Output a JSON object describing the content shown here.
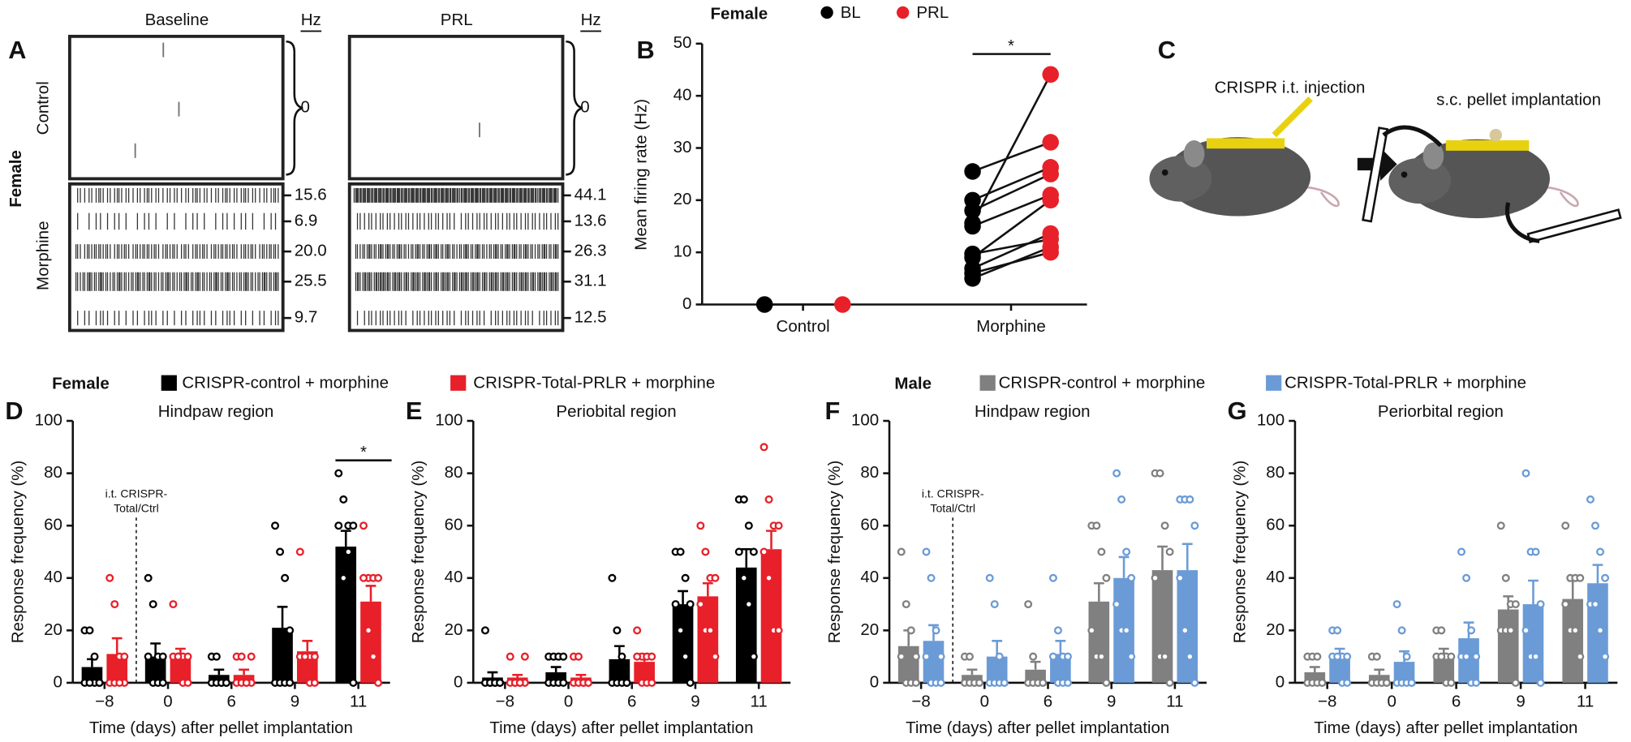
{
  "chart_data": [
    {
      "type": "raster",
      "panel": "A",
      "group_label": "Female",
      "rows": [
        "Control",
        "Morphine"
      ],
      "columns": [
        {
          "title": "Baseline",
          "unit": "Hz",
          "control": 0,
          "values": [
            15.6,
            6.9,
            20,
            25.5,
            9.7
          ],
          "value_labels": [
            "15.6",
            "6.9",
            "20.0",
            "25.5",
            "9.7"
          ]
        },
        {
          "title": "PRL",
          "unit": "Hz",
          "control": 0,
          "values": [
            44.1,
            13.6,
            26.3,
            31.1,
            12.5
          ],
          "value_labels": [
            "44.1",
            "13.6",
            "26.3",
            "31.1",
            "12.5"
          ]
        }
      ]
    },
    {
      "type": "paired",
      "panel": "B",
      "group_label": "Female",
      "ylabel": "Mean firing rate (Hz)",
      "categories": [
        "Control",
        "Morphine"
      ],
      "ylim": [
        0,
        50
      ],
      "yticks": [
        0,
        10,
        20,
        30,
        40,
        50
      ],
      "significance": "*",
      "series": [
        {
          "name": "BL",
          "color": "#000000",
          "values": [
            [
              0
            ],
            [
              25.5,
              20,
              18,
              15.6,
              15,
              9.7,
              9,
              6.9,
              6,
              5
            ]
          ]
        },
        {
          "name": "PRL",
          "color": "#e8202a",
          "values": [
            [
              0
            ],
            [
              31.1,
              26.3,
              25,
              44.1,
              21,
              12.5,
              20,
              13.6,
              10,
              11
            ]
          ]
        }
      ]
    },
    {
      "type": "bar_scatter",
      "panel": "D",
      "title": "Hindpaw region",
      "xlabel": "Time (days) after pellet implantation",
      "ylabel": "Response frequency (%)",
      "categories": [
        "−8",
        "0",
        "6",
        "9",
        "11"
      ],
      "ylim": [
        0,
        100
      ],
      "yticks": [
        0,
        20,
        40,
        60,
        80,
        100
      ],
      "annotation": [
        "i.t. CRISPR-",
        "Total/Ctrl"
      ],
      "significance": "*",
      "series": [
        {
          "color": "#000000",
          "values": [
            6,
            10,
            3,
            21,
            52
          ],
          "errors": [
            3,
            5,
            2,
            8,
            6
          ],
          "points": [
            [
              20,
              20,
              0,
              0,
              0,
              0,
              10,
              0
            ],
            [
              40,
              30,
              10,
              10,
              10,
              0,
              0,
              0
            ],
            [
              10,
              10,
              0,
              0,
              0,
              0,
              0,
              0
            ],
            [
              60,
              50,
              40,
              20,
              0,
              0,
              0,
              0
            ],
            [
              80,
              70,
              60,
              60,
              60,
              40,
              50,
              0
            ]
          ]
        },
        {
          "color": "#e8202a",
          "values": [
            11,
            10,
            3,
            12,
            31
          ],
          "errors": [
            6,
            3,
            2,
            4,
            6
          ],
          "points": [
            [
              40,
              30,
              10,
              0,
              0,
              0,
              0,
              10
            ],
            [
              30,
              10,
              10,
              10,
              10,
              10,
              0,
              0
            ],
            [
              10,
              10,
              0,
              0,
              0,
              0,
              0,
              10
            ],
            [
              50,
              10,
              10,
              10,
              10,
              10,
              0,
              0
            ],
            [
              60,
              40,
              40,
              40,
              40,
              20,
              10,
              0
            ]
          ]
        }
      ]
    },
    {
      "type": "bar_scatter",
      "panel": "E",
      "title": "Periobital region",
      "xlabel": "Time (days) after pellet implantation",
      "ylabel": "Response frequency (%)",
      "categories": [
        "−8",
        "0",
        "6",
        "9",
        "11"
      ],
      "ylim": [
        0,
        100
      ],
      "yticks": [
        0,
        20,
        40,
        60,
        80,
        100
      ],
      "series": [
        {
          "color": "#000000",
          "values": [
            2,
            4,
            9,
            30,
            44
          ],
          "errors": [
            2,
            2,
            5,
            5,
            7
          ],
          "points": [
            [
              20,
              0,
              0,
              0,
              0,
              0,
              0,
              0
            ],
            [
              10,
              10,
              10,
              10,
              0,
              0,
              0,
              0
            ],
            [
              40,
              20,
              10,
              0,
              0,
              0,
              0,
              0
            ],
            [
              50,
              50,
              40,
              30,
              30,
              20,
              10,
              0
            ],
            [
              70,
              70,
              60,
              50,
              50,
              40,
              30,
              10
            ]
          ]
        },
        {
          "color": "#e8202a",
          "values": [
            2,
            2,
            8,
            33,
            51
          ],
          "errors": [
            1,
            1,
            3,
            5,
            7
          ],
          "points": [
            [
              10,
              0,
              0,
              0,
              0,
              0,
              0,
              10
            ],
            [
              10,
              10,
              0,
              0,
              0,
              0,
              0,
              0
            ],
            [
              20,
              10,
              10,
              10,
              10,
              0,
              0,
              0
            ],
            [
              60,
              50,
              40,
              40,
              30,
              20,
              20,
              10
            ],
            [
              90,
              70,
              60,
              60,
              50,
              40,
              20,
              20
            ]
          ]
        }
      ]
    },
    {
      "type": "bar_scatter",
      "panel": "F",
      "title": "Hindpaw region",
      "xlabel": "Time (days) after pellet implantation",
      "ylabel": "Response frequency (%)",
      "categories": [
        "−8",
        "0",
        "6",
        "9",
        "11"
      ],
      "ylim": [
        0,
        100
      ],
      "yticks": [
        0,
        20,
        40,
        60,
        80,
        100
      ],
      "annotation": [
        "i.t. CRISPR-",
        "Total/Ctrl"
      ],
      "series": [
        {
          "color": "#808080",
          "values": [
            14,
            3,
            5,
            31,
            43
          ],
          "errors": [
            6,
            2,
            3,
            7,
            9
          ],
          "points": [
            [
              50,
              30,
              20,
              10,
              10,
              0,
              0,
              0
            ],
            [
              10,
              10,
              0,
              0,
              0,
              0,
              0,
              0
            ],
            [
              30,
              10,
              0,
              0,
              0,
              0,
              0,
              0
            ],
            [
              60,
              60,
              50,
              40,
              20,
              10,
              10,
              0
            ],
            [
              80,
              80,
              60,
              50,
              40,
              10,
              10,
              0
            ]
          ]
        },
        {
          "color": "#6b9bd6",
          "values": [
            16,
            10,
            11,
            40,
            43
          ],
          "errors": [
            6,
            6,
            5,
            8,
            10
          ],
          "points": [
            [
              50,
              40,
              20,
              10,
              10,
              0,
              0,
              0
            ],
            [
              40,
              30,
              10,
              0,
              0,
              0,
              0,
              0
            ],
            [
              40,
              20,
              10,
              10,
              10,
              0,
              0,
              0
            ],
            [
              80,
              70,
              50,
              40,
              30,
              20,
              20,
              10
            ],
            [
              70,
              70,
              70,
              60,
              40,
              20,
              10,
              0
            ]
          ]
        }
      ]
    },
    {
      "type": "bar_scatter",
      "panel": "G",
      "title": "Periorbital region",
      "xlabel": "Time (days) after pellet implantation",
      "ylabel": "Response frequency (%)",
      "categories": [
        "−8",
        "0",
        "6",
        "9",
        "11"
      ],
      "ylim": [
        0,
        100
      ],
      "yticks": [
        0,
        20,
        40,
        60,
        80,
        100
      ],
      "series": [
        {
          "color": "#808080",
          "values": [
            4,
            3,
            11,
            28,
            32
          ],
          "errors": [
            2,
            2,
            2,
            5,
            7
          ],
          "points": [
            [
              10,
              10,
              10,
              0,
              0,
              0,
              0,
              0
            ],
            [
              10,
              10,
              0,
              0,
              0,
              0,
              0,
              0
            ],
            [
              20,
              20,
              10,
              10,
              10,
              10,
              0,
              0
            ],
            [
              60,
              40,
              30,
              30,
              20,
              20,
              20,
              0
            ],
            [
              60,
              40,
              40,
              40,
              30,
              20,
              20,
              10
            ]
          ]
        },
        {
          "color": "#6b9bd6",
          "values": [
            11,
            8,
            17,
            30,
            38
          ],
          "errors": [
            2,
            4,
            6,
            9,
            7
          ],
          "points": [
            [
              20,
              20,
              10,
              10,
              10,
              10,
              0,
              0
            ],
            [
              30,
              20,
              10,
              0,
              0,
              0,
              0,
              0
            ],
            [
              50,
              40,
              20,
              10,
              10,
              10,
              0,
              0
            ],
            [
              80,
              50,
              50,
              30,
              20,
              10,
              10,
              0
            ],
            [
              70,
              60,
              50,
              40,
              30,
              30,
              20,
              10
            ]
          ]
        }
      ]
    }
  ],
  "diagram": {
    "panel": "C",
    "steps": [
      "CRISPR i.t. injection",
      "s.c. pellet implantation"
    ]
  },
  "legends": [
    {
      "label": "Female",
      "entries": [
        {
          "name": "CRISPR-control + morphine",
          "color": "#000000"
        },
        {
          "name": "CRISPR-Total-PRLR + morphine",
          "color": "#e8202a"
        }
      ]
    },
    {
      "label": "Male",
      "entries": [
        {
          "name": "CRISPR-control + morphine",
          "color": "#808080"
        },
        {
          "name": "CRISPR-Total-PRLR + morphine",
          "color": "#6b9bd6"
        }
      ]
    }
  ]
}
